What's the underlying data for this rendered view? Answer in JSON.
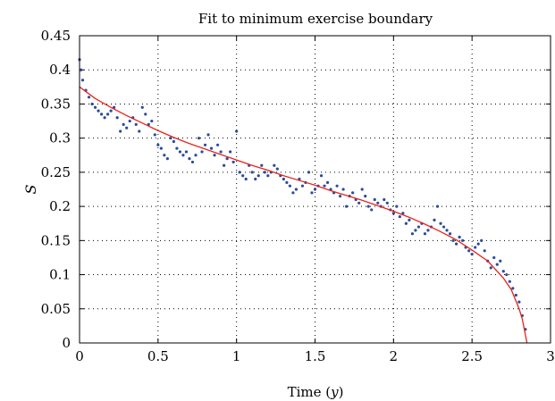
{
  "chart_data": {
    "type": "scatter",
    "title": "Fit to minimum exercise boundary",
    "xlabel_main": "Time (",
    "xlabel_var": "y",
    "xlabel_end": ")",
    "ylabel": "S",
    "xlim": [
      0,
      3
    ],
    "ylim": [
      0,
      0.45
    ],
    "xticks": [
      0,
      0.5,
      1,
      1.5,
      2,
      2.5,
      3
    ],
    "xtick_labels": [
      "0",
      "0.5",
      "1",
      "1.5",
      "2",
      "2.5",
      "3"
    ],
    "yticks": [
      0,
      0.05,
      0.1,
      0.15,
      0.2,
      0.25,
      0.3,
      0.35,
      0.4,
      0.45
    ],
    "ytick_labels": [
      "0",
      "0.05",
      "0.1",
      "0.15",
      "0.2",
      "0.25",
      "0.3",
      "0.35",
      "0.4",
      "0.45"
    ],
    "grid": true,
    "colors": {
      "points": "#2b4c9b",
      "fit": "#e8231c"
    },
    "series": [
      {
        "kind": "scatter",
        "x": [
          0.0,
          0.01,
          0.02,
          0.04,
          0.06,
          0.08,
          0.1,
          0.12,
          0.14,
          0.16,
          0.18,
          0.2,
          0.22,
          0.24,
          0.26,
          0.28,
          0.3,
          0.32,
          0.34,
          0.36,
          0.38,
          0.4,
          0.42,
          0.44,
          0.46,
          0.48,
          0.5,
          0.52,
          0.54,
          0.56,
          0.58,
          0.6,
          0.62,
          0.64,
          0.66,
          0.68,
          0.7,
          0.72,
          0.74,
          0.76,
          0.78,
          0.8,
          0.82,
          0.84,
          0.86,
          0.88,
          0.9,
          0.92,
          0.94,
          0.96,
          0.98,
          1.0,
          1.02,
          1.04,
          1.06,
          1.08,
          1.1,
          1.12,
          1.14,
          1.16,
          1.18,
          1.2,
          1.22,
          1.24,
          1.26,
          1.28,
          1.3,
          1.32,
          1.34,
          1.36,
          1.38,
          1.4,
          1.42,
          1.44,
          1.46,
          1.48,
          1.5,
          1.52,
          1.54,
          1.56,
          1.58,
          1.6,
          1.62,
          1.64,
          1.66,
          1.68,
          1.7,
          1.72,
          1.74,
          1.76,
          1.78,
          1.8,
          1.82,
          1.84,
          1.86,
          1.88,
          1.9,
          1.92,
          1.94,
          1.96,
          1.98,
          2.0,
          2.02,
          2.04,
          2.06,
          2.08,
          2.1,
          2.12,
          2.14,
          2.16,
          2.18,
          2.2,
          2.22,
          2.24,
          2.26,
          2.28,
          2.3,
          2.32,
          2.34,
          2.36,
          2.38,
          2.4,
          2.42,
          2.44,
          2.46,
          2.48,
          2.5,
          2.52,
          2.54,
          2.56,
          2.58,
          2.6,
          2.62,
          2.64,
          2.66,
          2.68,
          2.7,
          2.72,
          2.74,
          2.76,
          2.78,
          2.8,
          2.82,
          2.84
        ],
        "y": [
          0.415,
          0.4,
          0.385,
          0.37,
          0.36,
          0.35,
          0.345,
          0.34,
          0.335,
          0.33,
          0.335,
          0.34,
          0.345,
          0.33,
          0.31,
          0.32,
          0.315,
          0.325,
          0.33,
          0.32,
          0.31,
          0.345,
          0.335,
          0.32,
          0.325,
          0.305,
          0.29,
          0.285,
          0.275,
          0.27,
          0.3,
          0.295,
          0.285,
          0.28,
          0.275,
          0.28,
          0.27,
          0.265,
          0.275,
          0.3,
          0.28,
          0.29,
          0.305,
          0.285,
          0.275,
          0.29,
          0.28,
          0.26,
          0.27,
          0.28,
          0.265,
          0.31,
          0.25,
          0.245,
          0.24,
          0.26,
          0.25,
          0.24,
          0.245,
          0.26,
          0.25,
          0.245,
          0.25,
          0.26,
          0.255,
          0.245,
          0.24,
          0.235,
          0.23,
          0.22,
          0.225,
          0.24,
          0.23,
          0.235,
          0.25,
          0.22,
          0.225,
          0.23,
          0.245,
          0.23,
          0.235,
          0.225,
          0.22,
          0.23,
          0.215,
          0.225,
          0.2,
          0.215,
          0.22,
          0.21,
          0.205,
          0.225,
          0.215,
          0.2,
          0.195,
          0.21,
          0.205,
          0.2,
          0.21,
          0.205,
          0.195,
          0.19,
          0.2,
          0.185,
          0.19,
          0.175,
          0.18,
          0.16,
          0.165,
          0.17,
          0.175,
          0.16,
          0.165,
          0.17,
          0.18,
          0.2,
          0.175,
          0.17,
          0.165,
          0.16,
          0.15,
          0.145,
          0.155,
          0.15,
          0.14,
          0.135,
          0.13,
          0.14,
          0.145,
          0.15,
          0.135,
          0.12,
          0.11,
          0.125,
          0.115,
          0.12,
          0.105,
          0.1,
          0.09,
          0.08,
          0.07,
          0.06,
          0.04,
          0.02
        ],
        "name": ""
      },
      {
        "kind": "line",
        "x": [
          0.0,
          0.1,
          0.2,
          0.3,
          0.4,
          0.5,
          0.6,
          0.7,
          0.8,
          0.9,
          1.0,
          1.1,
          1.2,
          1.3,
          1.4,
          1.5,
          1.6,
          1.7,
          1.8,
          1.9,
          2.0,
          2.1,
          2.2,
          2.3,
          2.4,
          2.5,
          2.6,
          2.7,
          2.75,
          2.8,
          2.82,
          2.84,
          2.85
        ],
        "y": [
          0.375,
          0.358,
          0.345,
          0.333,
          0.322,
          0.311,
          0.301,
          0.292,
          0.284,
          0.276,
          0.268,
          0.26,
          0.253,
          0.245,
          0.238,
          0.231,
          0.223,
          0.216,
          0.209,
          0.201,
          0.193,
          0.184,
          0.174,
          0.163,
          0.151,
          0.136,
          0.12,
          0.095,
          0.078,
          0.05,
          0.035,
          0.012,
          0.0
        ],
        "name": ""
      }
    ]
  }
}
